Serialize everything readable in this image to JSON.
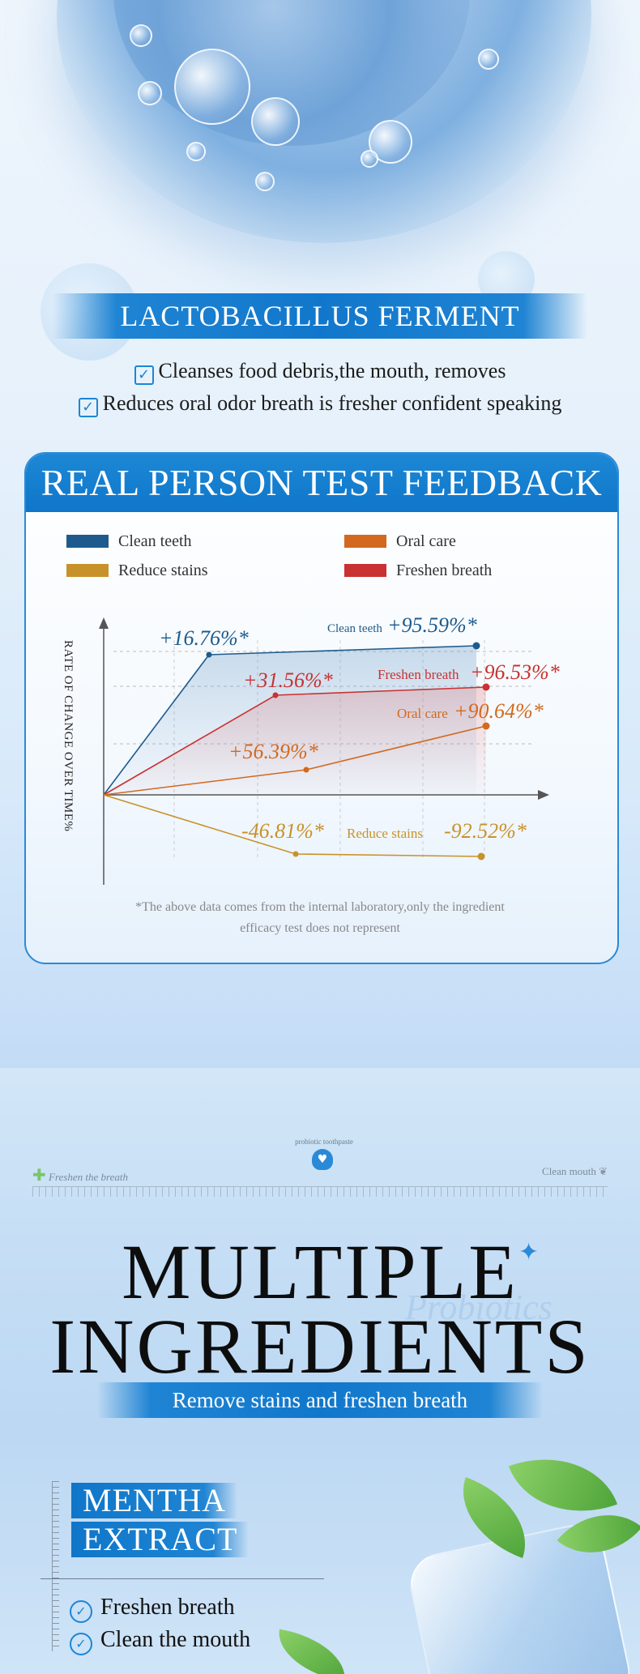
{
  "section1": {
    "title": "LACTOBACILLUS FERMENT",
    "bullets": [
      "Cleanses food debris,the mouth, removes",
      "Reduces oral odor breath is fresher confident speaking"
    ]
  },
  "card": {
    "title": "REAL PERSON TEST FEEDBACK",
    "y_axis_label": "RATE OF CHANGE OVER TIME%",
    "note_line1": "*The above data comes from the internal laboratory,only the ingredient",
    "note_line2": "efficacy test does not represent"
  },
  "chart_data": {
    "type": "line",
    "legend": [
      {
        "name": "Clean teeth",
        "color": "#1e5b8c"
      },
      {
        "name": "Oral care",
        "color": "#d2691e"
      },
      {
        "name": "Reduce stains",
        "color": "#c8922a"
      },
      {
        "name": "Freshen breath",
        "color": "#c83232"
      }
    ],
    "series": [
      {
        "name": "Clean teeth",
        "color": "#1e5b8c",
        "values": [
          0,
          16.76,
          95.59
        ]
      },
      {
        "name": "Freshen breath",
        "color": "#c83232",
        "values": [
          0,
          31.56,
          96.53
        ]
      },
      {
        "name": "Oral care",
        "color": "#d2691e",
        "values": [
          0,
          56.39,
          90.64
        ]
      },
      {
        "name": "Reduce stains",
        "color": "#c8922a",
        "values": [
          0,
          -46.81,
          -92.52
        ]
      }
    ],
    "labels": {
      "clean_mid": "+16.76%*",
      "clean_end_name": "Clean teeth",
      "clean_end": "+95.59%*",
      "fresh_mid": "+31.56%*",
      "fresh_end_name": "Freshen breath",
      "fresh_end": "+96.53%*",
      "oral_mid": "+56.39%*",
      "oral_end_name": "Oral care",
      "oral_end": "+90.64%*",
      "stain_mid": "-46.81%*",
      "stain_name": "Reduce stains",
      "stain_end": "-92.52%*"
    }
  },
  "section2": {
    "brand_left": "Freshen the breath",
    "brand_center": "probiotic toothpaste",
    "brand_right": "Clean mouth",
    "title_line1": "MULTIPLE",
    "title_line2": "INGREDIENTS",
    "script_word": "Probiotics",
    "subtitle": "Remove stains and freshen breath",
    "tag_line1": "MENTHA",
    "tag_line2": "EXTRACT",
    "features": [
      "Freshen breath",
      "Clean the mouth"
    ]
  }
}
